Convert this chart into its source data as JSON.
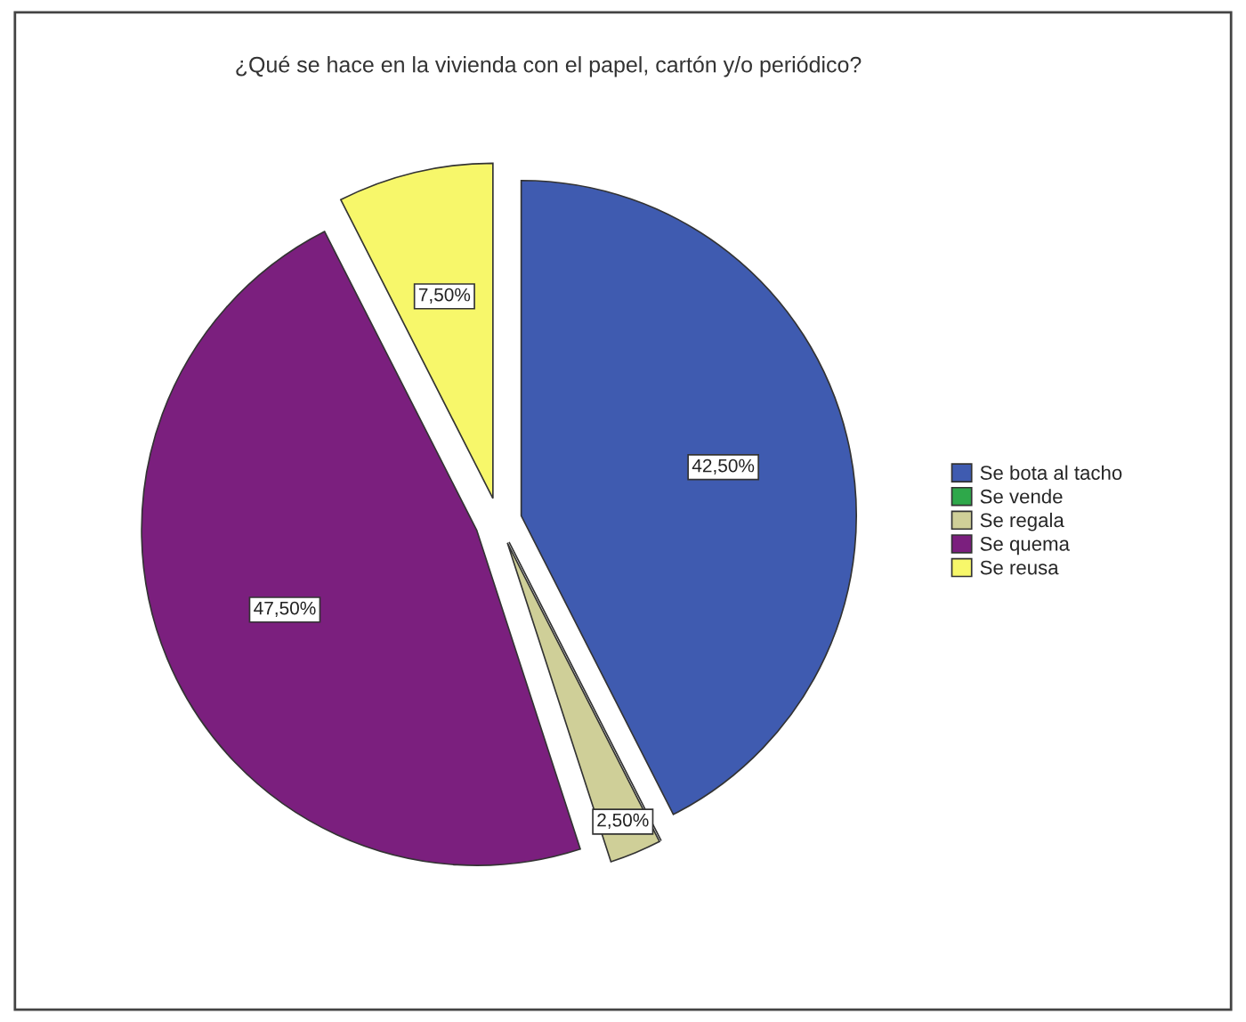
{
  "chart_data": {
    "type": "pie",
    "title": "¿Qué se hace en la vivienda con el papel, cartón y/o periódico?",
    "categories": [
      "Se bota al tacho",
      "Se vende",
      "Se regala",
      "Se quema",
      "Se reusa"
    ],
    "values": [
      42.5,
      0,
      2.5,
      47.5,
      7.5
    ],
    "value_labels": [
      "42,50%",
      null,
      "2,50%",
      "47,50%",
      "7,50%"
    ],
    "colors": [
      "#3f5bb0",
      "#2ea84a",
      "#cfcf98",
      "#7b1f7e",
      "#f7f76a"
    ],
    "legend": "right"
  }
}
